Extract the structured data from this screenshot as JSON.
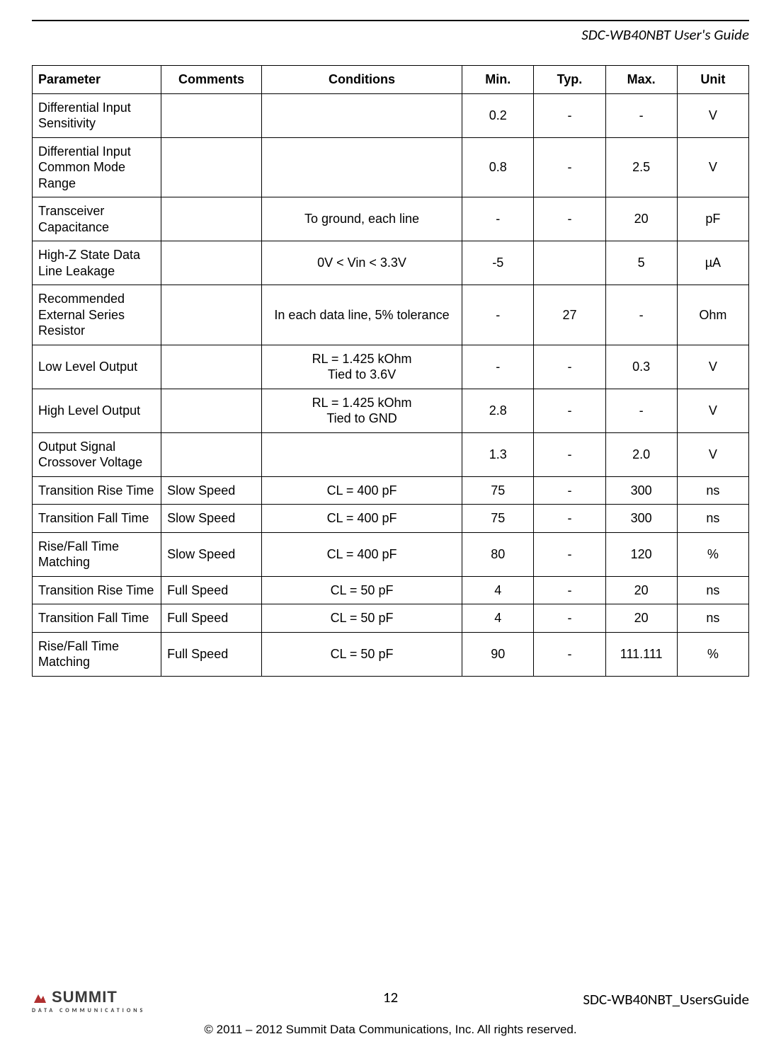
{
  "header": {
    "title": "SDC-WB40NBT User's Guide"
  },
  "table": {
    "columns": [
      "Parameter",
      "Comments",
      "Conditions",
      "Min.",
      "Typ.",
      "Max.",
      "Unit"
    ],
    "col_widths": [
      "18%",
      "14%",
      "28%",
      "10%",
      "10%",
      "10%",
      "10%"
    ],
    "rows": [
      {
        "parameter": "Differential Input Sensitivity",
        "comments": "",
        "conditions": "",
        "min": "0.2",
        "typ": "-",
        "max": "-",
        "unit": "V"
      },
      {
        "parameter": "Differential Input Common Mode Range",
        "comments": "",
        "conditions": "",
        "min": "0.8",
        "typ": "-",
        "max": "2.5",
        "unit": "V"
      },
      {
        "parameter": "Transceiver Capacitance",
        "comments": "",
        "conditions": "To ground, each line",
        "min": "-",
        "typ": "-",
        "max": "20",
        "unit": "pF"
      },
      {
        "parameter": "High-Z State Data Line Leakage",
        "comments": "",
        "conditions": "0V < Vin < 3.3V",
        "min": "-5",
        "typ": "",
        "max": "5",
        "unit": "µA"
      },
      {
        "parameter": "Recommended External Series Resistor",
        "comments": "",
        "conditions": "In each data line, 5% tolerance",
        "min": "-",
        "typ": "27",
        "max": "-",
        "unit": "Ohm"
      },
      {
        "parameter": "Low Level Output",
        "comments": "",
        "conditions": "RL = 1.425 kOhm\nTied to 3.6V",
        "min": "-",
        "typ": "-",
        "max": "0.3",
        "unit": "V"
      },
      {
        "parameter": "High Level Output",
        "comments": "",
        "conditions": "RL = 1.425 kOhm\nTied to GND",
        "min": "2.8",
        "typ": "-",
        "max": "-",
        "unit": "V"
      },
      {
        "parameter": "Output Signal Crossover Voltage",
        "comments": "",
        "conditions": "",
        "min": "1.3",
        "typ": "-",
        "max": "2.0",
        "unit": "V"
      },
      {
        "parameter": "Transition Rise Time",
        "comments": "Slow Speed",
        "conditions": "CL = 400 pF",
        "min": "75",
        "typ": "-",
        "max": "300",
        "unit": "ns"
      },
      {
        "parameter": "Transition Fall Time",
        "comments": "Slow Speed",
        "conditions": "CL = 400 pF",
        "min": "75",
        "typ": "-",
        "max": "300",
        "unit": "ns"
      },
      {
        "parameter": "Rise/Fall Time Matching",
        "comments": "Slow Speed",
        "conditions": "CL = 400 pF",
        "min": "80",
        "typ": "-",
        "max": "120",
        "unit": "%"
      },
      {
        "parameter": "Transition Rise Time",
        "comments": "Full Speed",
        "conditions": "CL = 50 pF",
        "min": "4",
        "typ": "-",
        "max": "20",
        "unit": "ns"
      },
      {
        "parameter": "Transition Fall Time",
        "comments": "Full Speed",
        "conditions": "CL = 50 pF",
        "min": "4",
        "typ": "-",
        "max": "20",
        "unit": "ns"
      },
      {
        "parameter": "Rise/Fall Time Matching",
        "comments": "Full Speed",
        "conditions": "CL = 50 pF",
        "min": "90",
        "typ": "-",
        "max": "111.111",
        "unit": "%"
      }
    ]
  },
  "footer": {
    "page_number": "12",
    "doc_id": "SDC-WB40NBT_UsersGuide",
    "copyright": "© 2011 – 2012 Summit Data Communications, Inc. All rights reserved.",
    "logo_word": "SUMMIT",
    "logo_sub": "DATA COMMUNICATIONS"
  }
}
